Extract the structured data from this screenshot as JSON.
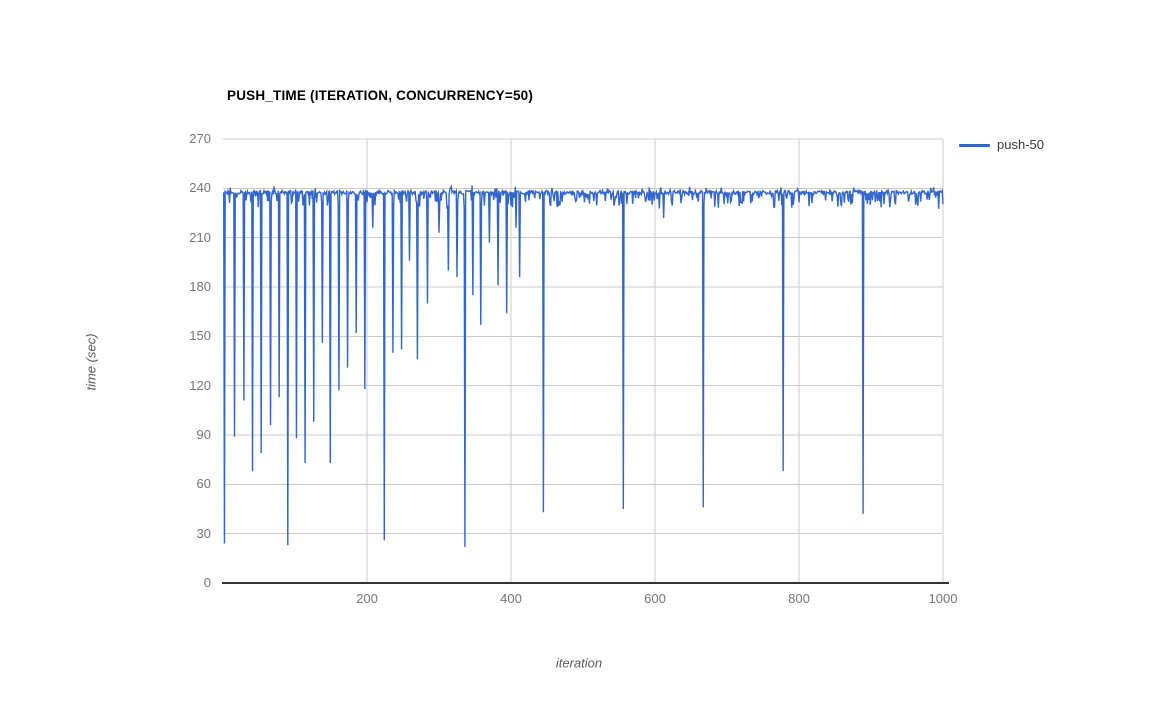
{
  "chart": {
    "title": "PUSH_TIME (ITERATION, CONCURRENCY=50)",
    "x_axis_title": "iteration",
    "y_axis_title": "time (sec)",
    "legend": {
      "label": "push-50"
    },
    "colors": {
      "series": "#3366cc",
      "grid": "#cccccc",
      "axis": "#333333",
      "tick_label": "#757575",
      "title": "#000000",
      "axis_title": "#5b5b5b",
      "background": "#ffffff"
    }
  },
  "chart_data": {
    "type": "line",
    "title": "PUSH_TIME (ITERATION, CONCURRENCY=50)",
    "xlabel": "iteration",
    "ylabel": "time (sec)",
    "xlim": [
      0,
      1000
    ],
    "ylim": [
      0,
      270
    ],
    "x_ticks": [
      200,
      400,
      600,
      800,
      1000
    ],
    "y_ticks": [
      0,
      30,
      60,
      90,
      120,
      150,
      180,
      210,
      240,
      270
    ],
    "grid": true,
    "legend_position": "right",
    "series": [
      {
        "name": "push-50",
        "color": "#3366cc",
        "baseline": 237.5,
        "baseline_jitter": 1.2,
        "minor_dip_chance": 0.2,
        "minor_dip_depth_max": 9,
        "spikes": [
          [
            2,
            24
          ],
          [
            16,
            89
          ],
          [
            29,
            111
          ],
          [
            41,
            68
          ],
          [
            53,
            79
          ],
          [
            66,
            96
          ],
          [
            78,
            113
          ],
          [
            90,
            23
          ],
          [
            102,
            88
          ],
          [
            114,
            73
          ],
          [
            126,
            98
          ],
          [
            138,
            146
          ],
          [
            149,
            73
          ],
          [
            161,
            117
          ],
          [
            173,
            131
          ],
          [
            185,
            152
          ],
          [
            197,
            118
          ],
          [
            208,
            216
          ],
          [
            224,
            26
          ],
          [
            236,
            140
          ],
          [
            248,
            142
          ],
          [
            259,
            196
          ],
          [
            270,
            136
          ],
          [
            284,
            170
          ],
          [
            300,
            213
          ],
          [
            313,
            190
          ],
          [
            325,
            186
          ],
          [
            336,
            22
          ],
          [
            347,
            175
          ],
          [
            358,
            157
          ],
          [
            370,
            207
          ],
          [
            382,
            181
          ],
          [
            394,
            164
          ],
          [
            407,
            216
          ],
          [
            412,
            186
          ],
          [
            445,
            43
          ],
          [
            556,
            45
          ],
          [
            612,
            222
          ],
          [
            667,
            46
          ],
          [
            778,
            68
          ],
          [
            889,
            42
          ]
        ]
      }
    ]
  }
}
